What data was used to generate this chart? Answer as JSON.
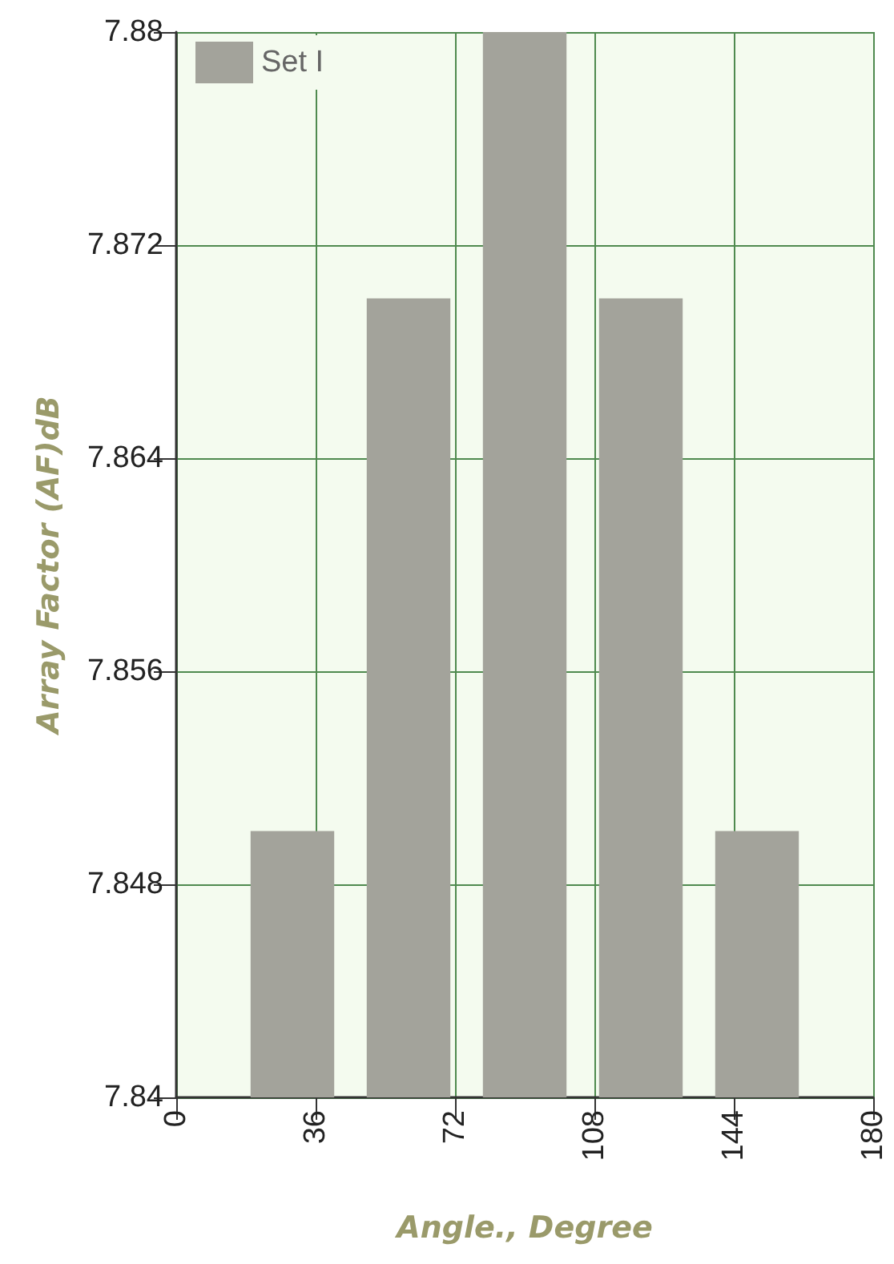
{
  "chart_data": {
    "type": "bar",
    "xlabel": "Angle., Degree",
    "ylabel": "Array Factor (AF)dB",
    "x": [
      30,
      60,
      90,
      120,
      150
    ],
    "series": [
      {
        "name": "Set I",
        "color": "#a3a39b",
        "values": [
          7.85,
          7.87,
          7.88,
          7.87,
          7.85
        ]
      }
    ],
    "xlim": [
      0,
      180
    ],
    "xticks": [
      0,
      36,
      72,
      108,
      144,
      180
    ],
    "ylim": [
      7.84,
      7.88
    ],
    "yticks": [
      7.84,
      7.848,
      7.856,
      7.864,
      7.872,
      7.88
    ],
    "grid": true,
    "legend": "top left"
  }
}
